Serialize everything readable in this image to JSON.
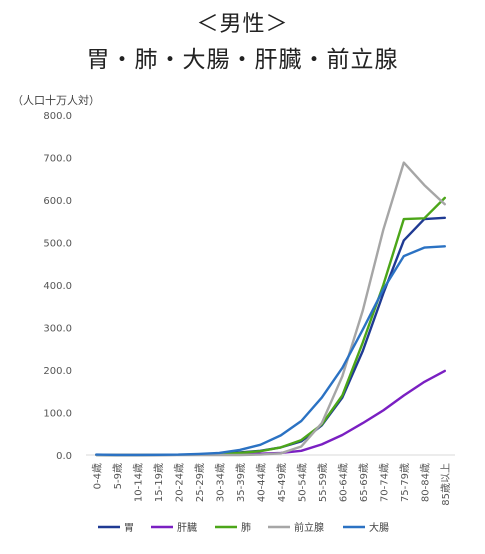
{
  "chart_data": {
    "type": "line",
    "title": "＜男性＞",
    "subtitle": "胃・肺・大腸・肝臓・前立腺",
    "ylabel": "（人口十万人対）",
    "xlabel": "",
    "ylim": [
      0,
      800
    ],
    "yticks": [
      "0.0",
      "100.0",
      "200.0",
      "300.0",
      "400.0",
      "500.0",
      "600.0",
      "700.0",
      "800.0"
    ],
    "grid": false,
    "legend_position": "bottom",
    "categories": [
      "0-4歳",
      "5-9歳",
      "10-14歳",
      "15-19歳",
      "20-24歳",
      "25-29歳",
      "30-34歳",
      "35-39歳",
      "40-44歳",
      "45-49歳",
      "50-54歳",
      "55-59歳",
      "60-64歳",
      "65-69歳",
      "70-74歳",
      "75-79歳",
      "80-84歳",
      "85歳以上"
    ],
    "series": [
      {
        "name": "胃",
        "color": "#1f3a93",
        "values": [
          0.2,
          0.0,
          0.0,
          0.2,
          0.5,
          1.5,
          3,
          6,
          10,
          18,
          32,
          70,
          135,
          245,
          380,
          505,
          555,
          558
        ]
      },
      {
        "name": "肝臓",
        "color": "#7a1fc2",
        "values": [
          0.5,
          0.0,
          0.0,
          0.2,
          0.5,
          0.8,
          1,
          2,
          3,
          5,
          10,
          25,
          47,
          75,
          105,
          140,
          172,
          198
        ]
      },
      {
        "name": "肺",
        "color": "#4ca619",
        "values": [
          0.2,
          0.0,
          0.0,
          0.2,
          0.5,
          1.0,
          2,
          5,
          9,
          18,
          35,
          72,
          140,
          265,
          400,
          555,
          557,
          605
        ]
      },
      {
        "name": "前立腺",
        "color": "#a6a6a6",
        "values": [
          0.0,
          0.0,
          0.0,
          0.0,
          0.0,
          0.0,
          0,
          0,
          1,
          4,
          20,
          75,
          185,
          340,
          530,
          688,
          635,
          590
        ]
      },
      {
        "name": "大腸",
        "color": "#2b72c3",
        "values": [
          1.0,
          0.2,
          0.3,
          0.5,
          1.0,
          2.5,
          5,
          12,
          24,
          46,
          80,
          135,
          205,
          295,
          390,
          468,
          488,
          491
        ]
      }
    ]
  }
}
